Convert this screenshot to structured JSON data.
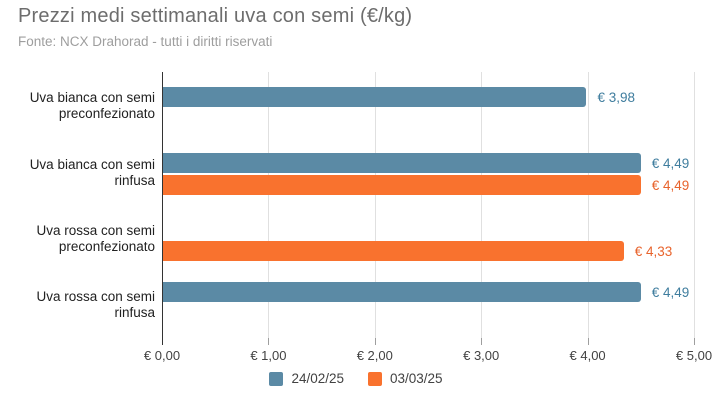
{
  "header": {
    "title": "Prezzi medi settimanali uva con semi (€/kg)",
    "subtitle": "Fonte: NCX Drahorad - tutti i diritti riservati"
  },
  "chart_data": {
    "type": "bar",
    "orientation": "horizontal",
    "title": "Prezzi medi settimanali uva con semi (€/kg)",
    "xlabel": "",
    "ylabel": "",
    "xlim": [
      0,
      5
    ],
    "grid": true,
    "legend_position": "bottom",
    "categories": [
      "Uva bianca con semi preconfezionato",
      "Uva bianca con semi rinfusa",
      "Uva rossa con semi preconfezionato",
      "Uva rossa con semi rinfusa"
    ],
    "category_lines": [
      [
        "Uva bianca con semi",
        "preconfezionato"
      ],
      [
        "Uva bianca con semi",
        "rinfusa"
      ],
      [
        "Uva rossa con semi",
        "preconfezionato"
      ],
      [
        "Uva rossa con semi",
        "rinfusa"
      ]
    ],
    "series": [
      {
        "name": "24/02/25",
        "color": "#5b8aa5",
        "label_color": "#3f7d9e",
        "values": [
          3.98,
          4.49,
          null,
          4.49
        ],
        "labels": [
          "€ 3,98",
          "€ 4,49",
          null,
          "€ 4,49"
        ]
      },
      {
        "name": "03/03/25",
        "color": "#f9722e",
        "label_color": "#e8632c",
        "values": [
          null,
          4.49,
          4.33,
          null
        ],
        "labels": [
          null,
          "€ 4,49",
          "€ 4,33",
          null
        ]
      }
    ],
    "x_ticks": [
      {
        "value": 0,
        "label": "€ 0,00"
      },
      {
        "value": 1,
        "label": "€ 1,00"
      },
      {
        "value": 2,
        "label": "€ 2,00"
      },
      {
        "value": 3,
        "label": "€ 3,00"
      },
      {
        "value": 4,
        "label": "€ 4,00"
      },
      {
        "value": 5,
        "label": "€ 5,00"
      }
    ]
  }
}
